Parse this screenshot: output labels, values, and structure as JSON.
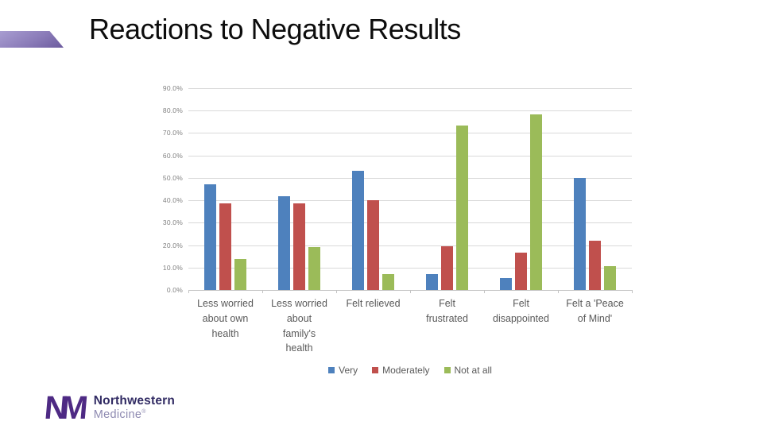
{
  "slide": {
    "title": "Reactions to Negative Results"
  },
  "footer_logo": {
    "monogram": "NM",
    "name": "Northwestern",
    "division": "Medicine",
    "registered_mark": "®"
  },
  "colors": {
    "accent_ribbon": "#8a7bb8",
    "very": "#4e81bd",
    "moderately": "#c0504d",
    "not_at_all": "#9bbb59",
    "gridline": "#d9d9d9",
    "axis_line": "#c3c3c3",
    "ytick_text": "#7f7f7f",
    "xtick_text": "#595959",
    "nm_purple": "#4e2a84"
  },
  "chart_data": {
    "type": "bar",
    "title": "Reactions to Negative Results",
    "categories": [
      "Less worried\nabout own\nhealth",
      "Less worried\nabout\nfamily's\nhealth",
      "Felt relieved",
      "Felt\nfrustrated",
      "Felt\ndisappointed",
      "Felt a 'Peace\nof Mind'"
    ],
    "series": [
      {
        "name": "Very",
        "color_key": "very",
        "values": [
          47.0,
          42.0,
          53.0,
          7.0,
          5.5,
          50.0
        ]
      },
      {
        "name": "Moderately",
        "color_key": "moderately",
        "values": [
          38.5,
          38.5,
          40.0,
          19.5,
          16.5,
          22.0
        ]
      },
      {
        "name": "Not at all",
        "color_key": "not_at_all",
        "values": [
          14.0,
          19.0,
          7.0,
          73.5,
          78.5,
          10.5
        ]
      }
    ],
    "values_unit": "%",
    "xlabel": "",
    "ylabel": "",
    "ylim": [
      0,
      90
    ],
    "ytick_labels": [
      "90.0%",
      "80.0%",
      "70.0%",
      "60.0%",
      "50.0%",
      "40.0%",
      "30.0%",
      "20.0%",
      "10.0%",
      "0.0%"
    ],
    "grid": "horizontal",
    "legend_position": "bottom"
  }
}
